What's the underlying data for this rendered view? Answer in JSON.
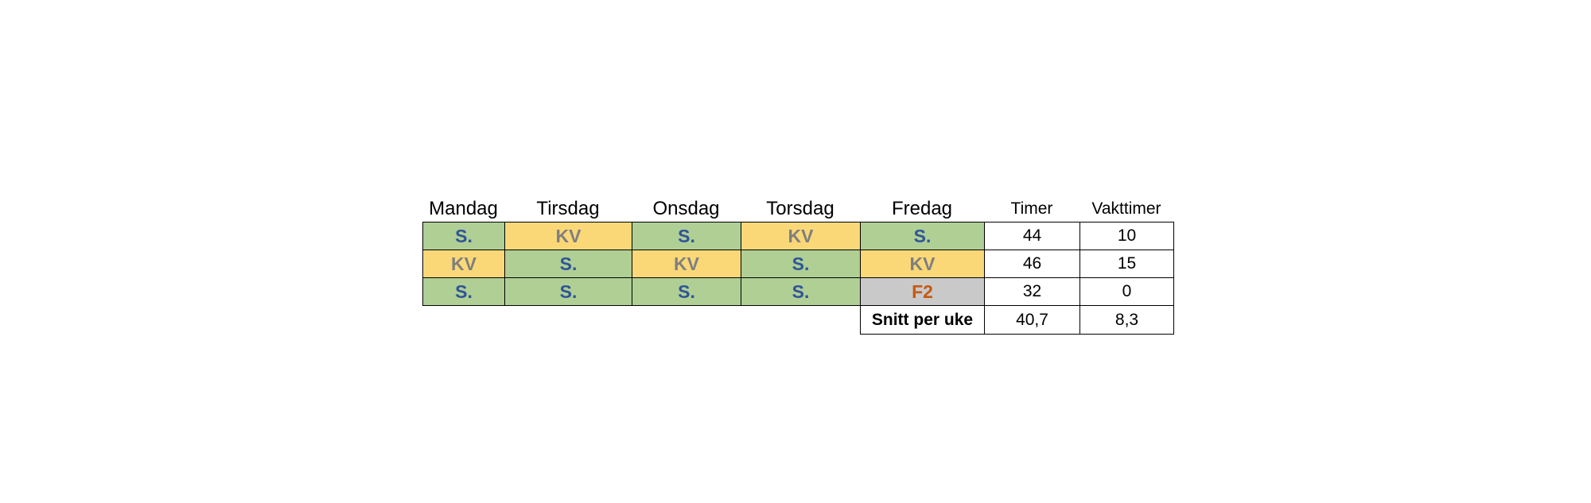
{
  "headers": {
    "days": [
      "Mandag",
      "Tirsdag",
      "Onsdag",
      "Torsdag",
      "Fredag"
    ],
    "timer": "Timer",
    "vakttimer": "Vakttimer"
  },
  "rows": [
    {
      "shifts": [
        "S.",
        "KV",
        "S.",
        "KV",
        "S."
      ],
      "timer": "44",
      "vakttimer": "10"
    },
    {
      "shifts": [
        "KV",
        "S.",
        "KV",
        "S.",
        "KV"
      ],
      "timer": "46",
      "vakttimer": "15"
    },
    {
      "shifts": [
        "S.",
        "S.",
        "S.",
        "S.",
        "F2"
      ],
      "timer": "32",
      "vakttimer": "0"
    }
  ],
  "summary": {
    "label": "Snitt per uke",
    "timer": "40,7",
    "vakttimer": "8,3"
  },
  "colors": {
    "S.": {
      "background": "#b0cf95",
      "text": "#2f5597"
    },
    "KV": {
      "background": "#fad878",
      "text": "#7f7f7f"
    },
    "F2": {
      "background": "#c9c9c9",
      "text": "#c55a11"
    }
  }
}
